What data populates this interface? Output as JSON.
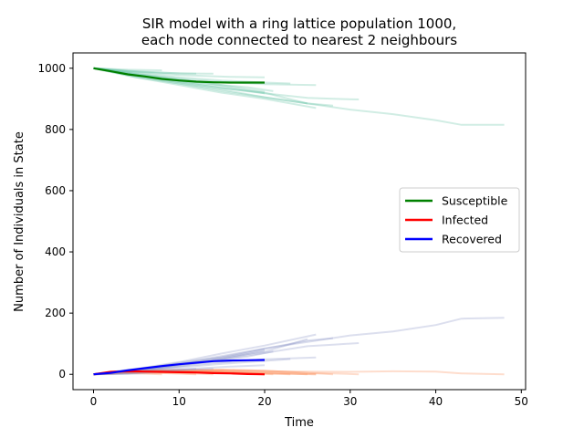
{
  "chart_data": {
    "type": "line",
    "title_line1": "SIR model with a ring lattice population 1000,",
    "title_line2": "each node connected to nearest 2 neighbours",
    "xlabel": "Time",
    "ylabel": "Number of Individuals in State",
    "xlim": [
      -2.4,
      50.5
    ],
    "ylim": [
      -50,
      1050
    ],
    "xticks": [
      0,
      10,
      20,
      30,
      40,
      50
    ],
    "yticks": [
      0,
      200,
      400,
      600,
      800,
      1000
    ],
    "grid": false,
    "legend_position": "center-right",
    "colors": {
      "Susceptible": "#008000",
      "Infected": "#ff0000",
      "Recovered": "#0000ff",
      "Susceptible_run": "#66c2a4",
      "Infected_run": "#fc8d59",
      "Recovered_run": "#8c96c6"
    },
    "series": [
      {
        "name": "Susceptible",
        "x": [
          0,
          2,
          4,
          6,
          8,
          10,
          12,
          14,
          16,
          18,
          20
        ],
        "values": [
          1000,
          990,
          980,
          973,
          965,
          960,
          956,
          954,
          953,
          953,
          953
        ]
      },
      {
        "name": "Infected",
        "x": [
          0,
          2,
          4,
          6,
          8,
          10,
          12,
          14,
          16,
          18,
          20
        ],
        "values": [
          0,
          8,
          10,
          9,
          8,
          7,
          6,
          4,
          3,
          1,
          0
        ]
      },
      {
        "name": "Recovered",
        "x": [
          0,
          2,
          4,
          6,
          8,
          10,
          12,
          14,
          16,
          18,
          20
        ],
        "values": [
          0,
          5,
          13,
          20,
          27,
          33,
          38,
          43,
          45,
          46,
          47
        ]
      }
    ],
    "runs": [
      {
        "x": [
          0,
          5,
          10,
          15,
          20,
          25,
          30,
          35,
          40,
          43,
          48
        ],
        "S": [
          1000,
          975,
          950,
          930,
          905,
          885,
          865,
          850,
          830,
          815,
          815
        ],
        "I": [
          0,
          10,
          12,
          14,
          10,
          9,
          8,
          10,
          9,
          3,
          0
        ],
        "R": [
          0,
          15,
          38,
          56,
          85,
          106,
          127,
          140,
          161,
          182,
          185
        ]
      },
      {
        "x": [
          0,
          5,
          10,
          15,
          20,
          25,
          28,
          31
        ],
        "S": [
          1000,
          978,
          955,
          935,
          918,
          903,
          900,
          898
        ],
        "I": [
          0,
          12,
          13,
          15,
          12,
          5,
          3,
          0
        ],
        "R": [
          0,
          10,
          32,
          50,
          70,
          92,
          97,
          102
        ]
      },
      {
        "x": [
          0,
          5,
          10,
          15,
          20,
          25,
          28
        ],
        "S": [
          1000,
          970,
          950,
          925,
          905,
          885,
          878
        ],
        "I": [
          0,
          12,
          14,
          15,
          12,
          5,
          0
        ],
        "R": [
          0,
          18,
          36,
          60,
          83,
          110,
          118
        ]
      },
      {
        "x": [
          0,
          5,
          10,
          15,
          20,
          26
        ],
        "S": [
          1000,
          970,
          945,
          920,
          900,
          870
        ],
        "I": [
          0,
          12,
          15,
          12,
          6,
          0
        ],
        "R": [
          0,
          18,
          40,
          68,
          94,
          130
        ]
      },
      {
        "x": [
          0,
          5,
          10,
          15,
          20,
          25
        ],
        "S": [
          1000,
          975,
          955,
          935,
          920,
          885
        ],
        "I": [
          0,
          12,
          13,
          10,
          6,
          0
        ],
        "R": [
          0,
          13,
          32,
          55,
          74,
          115
        ]
      },
      {
        "x": [
          0,
          5,
          10,
          15,
          20,
          26
        ],
        "S": [
          1000,
          980,
          965,
          955,
          948,
          945
        ],
        "I": [
          0,
          10,
          9,
          6,
          3,
          0
        ],
        "R": [
          0,
          10,
          26,
          39,
          49,
          55
        ]
      },
      {
        "x": [
          0,
          5,
          10,
          15,
          18,
          21
        ],
        "S": [
          1000,
          980,
          960,
          945,
          938,
          925
        ],
        "I": [
          0,
          11,
          10,
          8,
          4,
          0
        ],
        "R": [
          0,
          9,
          30,
          47,
          58,
          75
        ]
      },
      {
        "x": [
          0,
          5,
          10,
          15,
          20,
          23
        ],
        "S": [
          1000,
          985,
          970,
          960,
          953,
          950
        ],
        "I": [
          0,
          9,
          8,
          6,
          3,
          0
        ],
        "R": [
          0,
          6,
          22,
          34,
          44,
          50
        ]
      },
      {
        "x": [
          0,
          5,
          10,
          14
        ],
        "S": [
          1000,
          990,
          983,
          982
        ],
        "I": [
          0,
          6,
          4,
          0
        ],
        "R": [
          0,
          4,
          13,
          18
        ]
      },
      {
        "x": [
          0,
          5,
          10,
          16,
          20
        ],
        "S": [
          1000,
          988,
          978,
          972,
          970
        ],
        "I": [
          0,
          8,
          6,
          3,
          0
        ],
        "R": [
          0,
          4,
          16,
          25,
          30
        ]
      },
      {
        "x": [
          0,
          4,
          8
        ],
        "S": [
          1000,
          995,
          993
        ],
        "I": [
          0,
          4,
          0
        ],
        "R": [
          0,
          1,
          7
        ]
      },
      {
        "x": [
          0,
          5,
          10,
          15,
          20
        ],
        "S": [
          1000,
          980,
          958,
          940,
          918
        ],
        "I": [
          0,
          11,
          10,
          8,
          0
        ],
        "R": [
          0,
          9,
          32,
          52,
          82
        ]
      },
      {
        "x": [
          0,
          5,
          10,
          15,
          20
        ],
        "S": [
          1000,
          982,
          965,
          945,
          923
        ],
        "I": [
          0,
          10,
          9,
          6,
          0
        ],
        "R": [
          0,
          8,
          26,
          49,
          77
        ]
      },
      {
        "x": [
          0,
          4,
          8,
          12
        ],
        "S": [
          1000,
          990,
          985,
          982
        ],
        "I": [
          0,
          6,
          4,
          0
        ],
        "R": [
          0,
          4,
          11,
          18
        ]
      }
    ]
  }
}
